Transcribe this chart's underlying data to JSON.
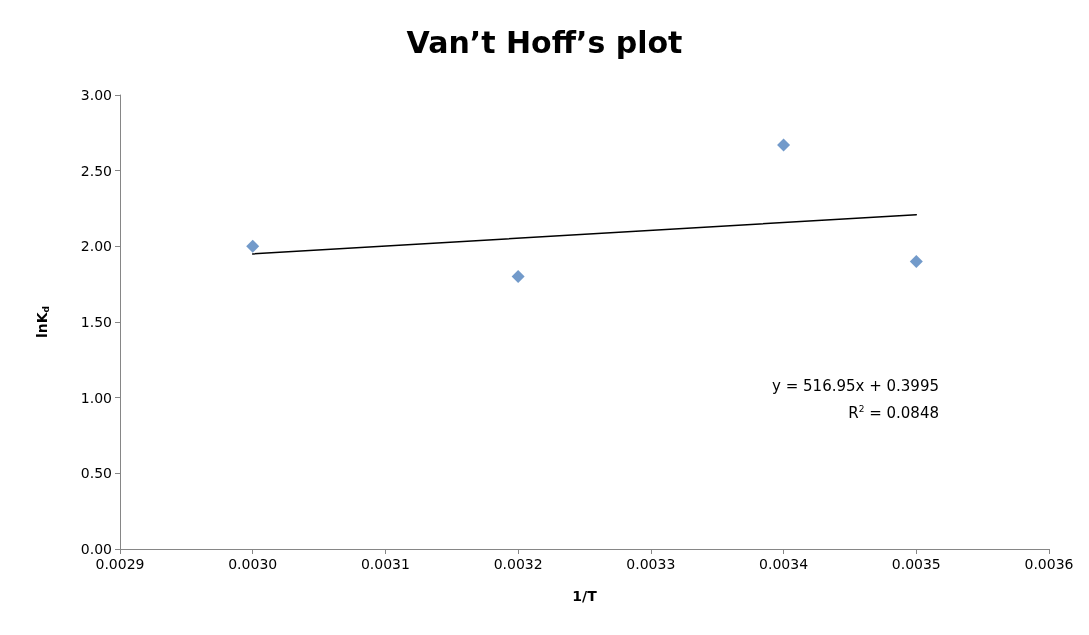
{
  "chart_data": {
    "type": "scatter",
    "title": "Van’t Hoff’s plot",
    "xlabel": "1/T",
    "ylabel": "lnK$_{d}$",
    "series": [
      {
        "color": "#4f81bd",
        "marker": "diamond",
        "x": [
          0.003,
          0.0032,
          0.0034,
          0.0035
        ],
        "values": [
          2.0,
          1.8,
          2.67,
          1.9
        ]
      },
      {
        "type": "line",
        "color": "#000000",
        "marker": "none",
        "line_style": "solid",
        "x": [
          0.003,
          0.0035
        ],
        "values": [
          1.95,
          2.209
        ]
      }
    ],
    "xlim": [
      0.0029,
      0.0036
    ],
    "xticks": [
      {
        "value": 0.0029,
        "label": "0.0029"
      },
      {
        "value": 0.003,
        "label": "0.0030"
      },
      {
        "value": 0.0031,
        "label": "0.0031"
      },
      {
        "value": 0.0032,
        "label": "0.0032"
      },
      {
        "value": 0.0033,
        "label": "0.0033"
      },
      {
        "value": 0.0034,
        "label": "0.0034"
      },
      {
        "value": 0.0035,
        "label": "0.0035"
      },
      {
        "value": 0.0036,
        "label": "0.0036"
      }
    ],
    "ylim": [
      0,
      3
    ],
    "yticks": [
      {
        "value": 0,
        "label": "0.00"
      },
      {
        "value": 0.5,
        "label": "0.50"
      },
      {
        "value": 1,
        "label": "1.00"
      },
      {
        "value": 1.5,
        "label": "1.50"
      },
      {
        "value": 2,
        "label": "2.00"
      },
      {
        "value": 2.5,
        "label": "2.50"
      },
      {
        "value": 3,
        "label": "3.00"
      }
    ],
    "grid": false,
    "annotations": [
      "y = 516.95x + 0.3995",
      "R$^{2}$ = 0.0848"
    ]
  }
}
